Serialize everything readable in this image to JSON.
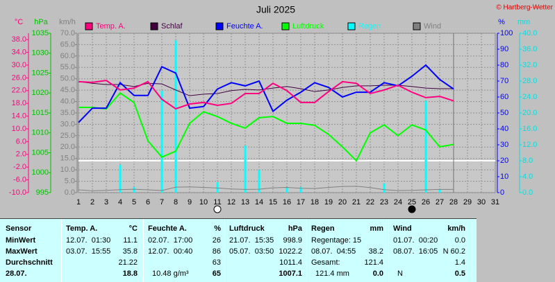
{
  "chart_data": {
    "type": "line",
    "title": "Juli 2025",
    "credit": "© Hartberg-Wetter",
    "categories": [
      "1",
      "2",
      "3",
      "4",
      "5",
      "6",
      "7",
      "8",
      "9",
      "10",
      "11",
      "12",
      "13",
      "14",
      "15",
      "16",
      "17",
      "18",
      "19",
      "20",
      "21",
      "22",
      "23",
      "24",
      "25",
      "26",
      "27",
      "28",
      "29",
      "30",
      "31"
    ],
    "grid": true,
    "grid_axis": 2,
    "axes": [
      {
        "unit": "°C",
        "color": "#ff0080",
        "side": "left",
        "lim": [
          -10,
          40
        ],
        "ticks": [
          {
            "value": 38,
            "label": "38.0"
          },
          {
            "value": 34,
            "label": "34.0"
          },
          {
            "value": 30,
            "label": "30.0"
          },
          {
            "value": 26,
            "label": "26.0"
          },
          {
            "value": 22,
            "label": "22.0"
          },
          {
            "value": 18,
            "label": "18.0"
          },
          {
            "value": 14,
            "label": "14.0"
          },
          {
            "value": 10,
            "label": "10.0"
          },
          {
            "value": 6,
            "label": "6.0"
          },
          {
            "value": 2,
            "label": "2.0"
          },
          {
            "value": -2,
            "label": "-2.0"
          },
          {
            "value": -6,
            "label": "-6.0"
          },
          {
            "value": -10,
            "label": "-10.0"
          }
        ]
      },
      {
        "unit": "hPa",
        "color": "#00c000",
        "side": "left",
        "lim": [
          995,
          1035
        ],
        "ticks": [
          995,
          1000,
          1005,
          1010,
          1015,
          1020,
          1025,
          1030,
          1035
        ]
      },
      {
        "unit": "km/h",
        "color": "#808080",
        "side": "left",
        "lim": [
          0,
          70
        ],
        "ticks": [
          {
            "value": 0,
            "label": "0.0"
          },
          {
            "value": 5,
            "label": "5.0"
          },
          {
            "value": 10,
            "label": "10.0"
          },
          {
            "value": 15,
            "label": "15.0"
          },
          {
            "value": 20,
            "label": "20.0"
          },
          {
            "value": 25,
            "label": "25.0"
          },
          {
            "value": 30,
            "label": "30.0"
          },
          {
            "value": 35,
            "label": "35.0"
          },
          {
            "value": 40,
            "label": "40.0"
          },
          {
            "value": 45,
            "label": "45.0"
          },
          {
            "value": 50,
            "label": "50.0"
          },
          {
            "value": 55,
            "label": "55.0"
          },
          {
            "value": 60,
            "label": "60.0"
          },
          {
            "value": 65,
            "label": "65.0"
          },
          {
            "value": 70,
            "label": "70.0"
          }
        ]
      },
      {
        "unit": "%",
        "color": "#0000ff",
        "side": "right",
        "lim": [
          0,
          100
        ],
        "ticks": [
          0,
          10,
          20,
          30,
          40,
          50,
          60,
          70,
          80,
          90,
          100
        ]
      },
      {
        "unit": "mm",
        "color": "#00e0e0",
        "side": "right",
        "lim": [
          0,
          40
        ],
        "ticks": [
          {
            "value": 0,
            "label": "0.0"
          },
          {
            "value": 4,
            "label": "4.0"
          },
          {
            "value": 8,
            "label": "8.0"
          },
          {
            "value": 12,
            "label": "12.0"
          },
          {
            "value": 16,
            "label": "16.0"
          },
          {
            "value": 20,
            "label": "20.0"
          },
          {
            "value": 24,
            "label": "24.0"
          },
          {
            "value": 28,
            "label": "28.0"
          },
          {
            "value": 32,
            "label": "32.0"
          },
          {
            "value": 36,
            "label": "36.0"
          },
          {
            "value": 40,
            "label": "40.0"
          }
        ]
      }
    ],
    "series": [
      {
        "name": "Temp. A.",
        "color": "#ff0080",
        "axis": 0,
        "type": "line",
        "values": [
          24.8,
          24.6,
          25.2,
          22.2,
          22.8,
          24.8,
          19.3,
          16.3,
          17.8,
          18.3,
          17.4,
          18.0,
          21.1,
          21.1,
          24.3,
          22.0,
          18.3,
          18.3,
          21.7,
          24.8,
          24.3,
          21.1,
          22.2,
          23.7,
          21.5,
          19.8,
          20.2,
          18.8,
          null,
          null,
          null
        ]
      },
      {
        "name": "Schlaf",
        "color": "#400040",
        "axis": 0,
        "type": "line",
        "values": [
          24.8,
          24.3,
          23.9,
          23.9,
          23.3,
          24.3,
          24.1,
          22.2,
          20.4,
          20.9,
          21.1,
          22.0,
          22.4,
          22.2,
          22.8,
          23.3,
          22.6,
          21.7,
          22.2,
          23.0,
          23.5,
          23.5,
          23.7,
          23.7,
          23.3,
          22.8,
          22.6,
          22.6,
          null,
          null,
          null
        ]
      },
      {
        "name": "Feuchte A.",
        "color": "#0000ff",
        "axis": 3,
        "type": "line",
        "values": [
          44,
          53,
          53,
          69,
          61,
          61,
          79,
          75,
          53,
          54,
          65,
          69,
          67,
          70,
          51,
          58,
          63,
          69,
          66,
          60,
          63,
          63,
          69,
          67,
          73,
          80,
          71,
          65,
          null,
          null,
          null
        ]
      },
      {
        "name": "Luftdruck",
        "color": "#00ff00",
        "axis": 1,
        "type": "line",
        "values": [
          1016.4,
          1016.4,
          1016.0,
          1020.0,
          1017.6,
          1008.0,
          1003.9,
          1005.4,
          1012.4,
          1015.3,
          1014.1,
          1012.4,
          1011.2,
          1013.8,
          1014.1,
          1012.4,
          1012.4,
          1011.9,
          1009.6,
          1006.5,
          1003.0,
          1010.0,
          1012.0,
          1009.3,
          1012.0,
          1010.7,
          1006.5,
          1007.1,
          null,
          null,
          null
        ]
      },
      {
        "name": "Regen",
        "color": "#00ffff",
        "axis": 4,
        "type": "bar",
        "values": [
          0,
          0,
          0,
          7.0,
          1.4,
          0,
          25.6,
          38.2,
          0,
          0,
          2.6,
          0,
          11.8,
          5.7,
          0,
          1.4,
          1.4,
          0,
          0,
          0,
          0,
          0,
          2.3,
          0,
          0,
          23.1,
          0.9,
          0,
          null,
          null,
          null
        ]
      },
      {
        "name": "Wind",
        "color": "#808080",
        "axis": 2,
        "type": "line",
        "values": [
          1.2,
          0.8,
          1.0,
          1.3,
          1.5,
          1.2,
          0.9,
          2.4,
          2.5,
          2.3,
          2.0,
          1.6,
          1.4,
          1.5,
          2.1,
          2.3,
          1.9,
          1.8,
          2.3,
          2.7,
          2.8,
          2.2,
          1.3,
          0.9,
          1.0,
          1.2,
          1.4,
          1.4,
          null,
          null,
          null
        ]
      }
    ]
  },
  "table": {
    "header": [
      "Sensor",
      "Temp. A.",
      "°C",
      "Feuchte A.",
      "%",
      "Luftdruck",
      "hPa",
      "Regen",
      "mm",
      "Wind",
      "km/h"
    ],
    "rows": [
      [
        "MinWert",
        "12.07.  01:30",
        "11.1",
        "02.07.  17:00",
        "26",
        "21.07.  15:35",
        "998.9",
        "Regentage: 15",
        null,
        "01.07.  00:20",
        "0.0"
      ],
      [
        "MaxWert",
        "03.07.  15:55",
        "35.8",
        "12.07.  00:40",
        "86",
        "05.07.  03:50",
        "1022.2",
        "08.07.  04:55",
        "38.2",
        "08.07.  16:05",
        "N 60.2"
      ],
      [
        "Durchschnitt",
        null,
        "21.22",
        null,
        "63",
        null,
        "1011.4",
        "Gesamt:",
        "121.4",
        null,
        "1.4"
      ],
      [
        "28.07.",
        null,
        "18.8",
        "10.48 g/m³",
        "65",
        null,
        "1007.1",
        "121.4 mm",
        "0.0",
        "N",
        "0.5"
      ]
    ]
  }
}
